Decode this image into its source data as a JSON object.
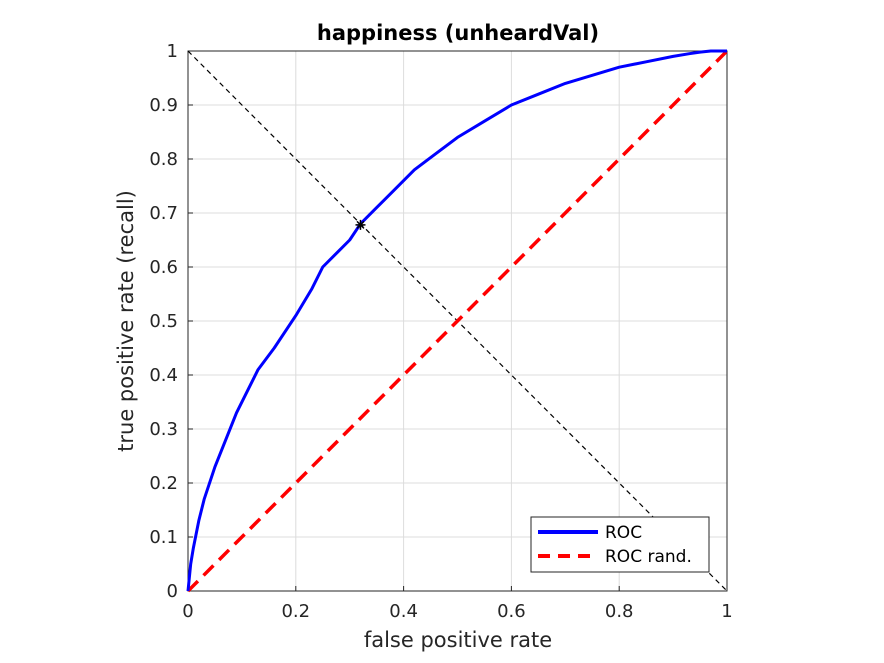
{
  "chart_data": {
    "type": "line",
    "title": "happiness (unheardVal)",
    "xlabel": "false positive rate",
    "ylabel": "true positive rate (recall)",
    "xlim": [
      0,
      1
    ],
    "ylim": [
      0,
      1
    ],
    "xticks": [
      0,
      0.2,
      0.4,
      0.6,
      0.8,
      1
    ],
    "xtick_labels": [
      "0",
      "0.2",
      "0.4",
      "0.6",
      "0.8",
      "1"
    ],
    "yticks": [
      0,
      0.1,
      0.2,
      0.3,
      0.4,
      0.5,
      0.6,
      0.7,
      0.8,
      0.9,
      1
    ],
    "ytick_labels": [
      "0",
      "0.1",
      "0.2",
      "0.3",
      "0.4",
      "0.5",
      "0.6",
      "0.7",
      "0.8",
      "0.9",
      "1"
    ],
    "grid": true,
    "legend_position": "bottom-right",
    "series": [
      {
        "name": "ROC",
        "color": "#0000ff",
        "style": "solid",
        "x": [
          0,
          0.005,
          0.01,
          0.02,
          0.03,
          0.05,
          0.07,
          0.09,
          0.11,
          0.13,
          0.16,
          0.2,
          0.23,
          0.25,
          0.28,
          0.3,
          0.32,
          0.35,
          0.38,
          0.42,
          0.46,
          0.5,
          0.55,
          0.6,
          0.65,
          0.7,
          0.75,
          0.8,
          0.85,
          0.9,
          0.93,
          0.95,
          0.97,
          1
        ],
        "y": [
          0,
          0.05,
          0.08,
          0.13,
          0.17,
          0.23,
          0.28,
          0.33,
          0.37,
          0.41,
          0.45,
          0.51,
          0.56,
          0.6,
          0.63,
          0.65,
          0.68,
          0.71,
          0.74,
          0.78,
          0.81,
          0.84,
          0.87,
          0.9,
          0.92,
          0.94,
          0.955,
          0.97,
          0.98,
          0.99,
          0.995,
          0.998,
          1,
          1
        ]
      },
      {
        "name": "ROC rand.",
        "color": "#ff0000",
        "style": "dashed",
        "x": [
          0,
          1
        ],
        "y": [
          0,
          1
        ]
      }
    ],
    "reference_line": {
      "color": "#000000",
      "style": "dashed",
      "x": [
        0,
        1
      ],
      "y": [
        1,
        0
      ]
    },
    "marker": {
      "symbol": "*",
      "color": "#000000",
      "x": 0.32,
      "y": 0.678
    }
  }
}
